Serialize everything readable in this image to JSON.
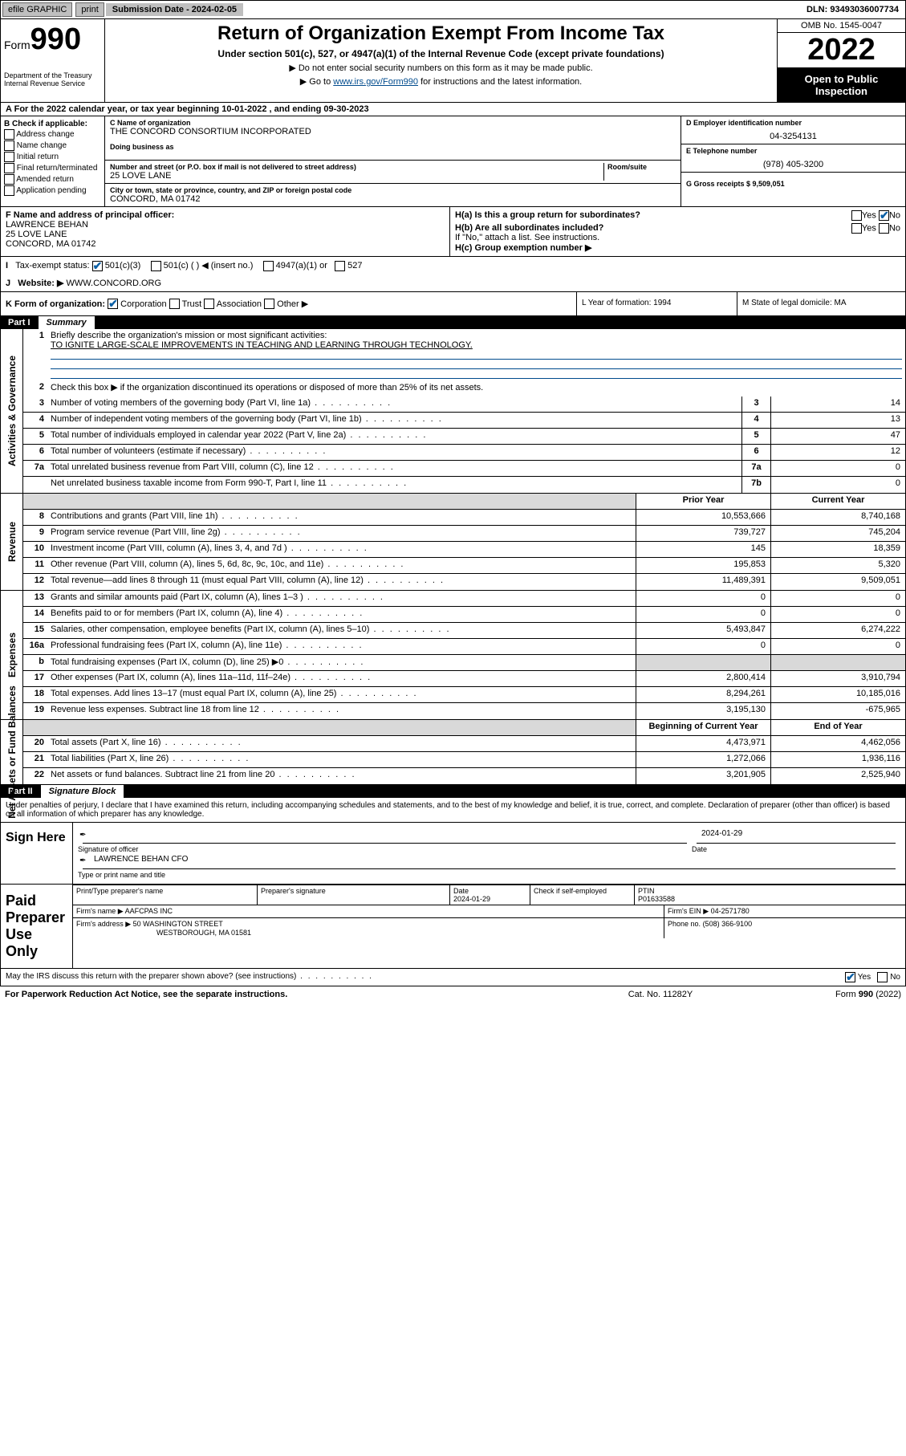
{
  "topbar": {
    "efile_label": "efile GRAPHIC",
    "print_label": "print",
    "submission_label": "Submission Date - 2024-02-05",
    "dln_label": "DLN: 93493036007734"
  },
  "header": {
    "form_prefix": "Form",
    "form_number": "990",
    "dept": "Department of the Treasury",
    "irs": "Internal Revenue Service",
    "title": "Return of Organization Exempt From Income Tax",
    "subtitle": "Under section 501(c), 527, or 4947(a)(1) of the Internal Revenue Code (except private foundations)",
    "instr1": "Do not enter social security numbers on this form as it may be made public.",
    "instr2_pre": "Go to ",
    "instr2_link": "www.irs.gov/Form990",
    "instr2_post": " for instructions and the latest information.",
    "omb": "OMB No. 1545-0047",
    "year": "2022",
    "open_public": "Open to Public Inspection"
  },
  "section_a": {
    "line_a": "For the 2022 calendar year, or tax year beginning 10-01-2022   , and ending 09-30-2023",
    "b_label": "B Check if applicable:",
    "b_opts": [
      "Address change",
      "Name change",
      "Initial return",
      "Final return/terminated",
      "Amended return",
      "Application pending"
    ],
    "c_name_lbl": "C Name of organization",
    "c_name": "THE CONCORD CONSORTIUM INCORPORATED",
    "dba_lbl": "Doing business as",
    "street_lbl": "Number and street (or P.O. box if mail is not delivered to street address)",
    "room_lbl": "Room/suite",
    "street": "25 LOVE LANE",
    "city_lbl": "City or town, state or province, country, and ZIP or foreign postal code",
    "city": "CONCORD, MA  01742",
    "d_lbl": "D Employer identification number",
    "d_val": "04-3254131",
    "e_lbl": "E Telephone number",
    "e_val": "(978) 405-3200",
    "g_lbl": "G Gross receipts $ 9,509,051",
    "f_lbl": "F Name and address of principal officer:",
    "f_name": "LAWRENCE BEHAN",
    "f_addr1": "25 LOVE LANE",
    "f_addr2": "CONCORD, MA  01742",
    "ha_lbl": "H(a)  Is this a group return for subordinates?",
    "ha_yes": "Yes",
    "ha_no": "No",
    "hb_lbl": "H(b)  Are all subordinates included?",
    "hb_yes": "Yes",
    "hb_no": "No",
    "hb_note": "If \"No,\" attach a list. See instructions.",
    "hc_lbl": "H(c)  Group exemption number ▶",
    "i_lbl": "Tax-exempt status:",
    "i_501c3": "501(c)(3)",
    "i_501c": "501(c) (    ) ◀ (insert no.)",
    "i_4947": "4947(a)(1) or",
    "i_527": "527",
    "j_lbl": "Website: ▶",
    "j_val": "WWW.CONCORD.ORG",
    "k_lbl": "K Form of organization:",
    "k_corp": "Corporation",
    "k_trust": "Trust",
    "k_assoc": "Association",
    "k_other": "Other ▶",
    "l_lbl": "L Year of formation: 1994",
    "m_lbl": "M State of legal domicile: MA"
  },
  "part1": {
    "tag": "Part I",
    "title": "Summary",
    "q1_lbl": "Briefly describe the organization's mission or most significant activities:",
    "q1_val": "TO IGNITE LARGE-SCALE IMPROVEMENTS IN TEACHING AND LEARNING THROUGH TECHNOLOGY.",
    "q2_lbl": "Check this box ▶        if the organization discontinued its operations or disposed of more than 25% of its net assets.",
    "rows_ag": [
      {
        "n": "3",
        "d": "Number of voting members of the governing body (Part VI, line 1a)",
        "c": "3",
        "v": "14"
      },
      {
        "n": "4",
        "d": "Number of independent voting members of the governing body (Part VI, line 1b)",
        "c": "4",
        "v": "13"
      },
      {
        "n": "5",
        "d": "Total number of individuals employed in calendar year 2022 (Part V, line 2a)",
        "c": "5",
        "v": "47"
      },
      {
        "n": "6",
        "d": "Total number of volunteers (estimate if necessary)",
        "c": "6",
        "v": "12"
      },
      {
        "n": "7a",
        "d": "Total unrelated business revenue from Part VIII, column (C), line 12",
        "c": "7a",
        "v": "0"
      },
      {
        "n": "",
        "d": "Net unrelated business taxable income from Form 990-T, Part I, line 11",
        "c": "7b",
        "v": "0"
      }
    ],
    "col_prior": "Prior Year",
    "col_current": "Current Year",
    "rows_rev": [
      {
        "n": "8",
        "d": "Contributions and grants (Part VIII, line 1h)",
        "p": "10,553,666",
        "c": "8,740,168"
      },
      {
        "n": "9",
        "d": "Program service revenue (Part VIII, line 2g)",
        "p": "739,727",
        "c": "745,204"
      },
      {
        "n": "10",
        "d": "Investment income (Part VIII, column (A), lines 3, 4, and 7d )",
        "p": "145",
        "c": "18,359"
      },
      {
        "n": "11",
        "d": "Other revenue (Part VIII, column (A), lines 5, 6d, 8c, 9c, 10c, and 11e)",
        "p": "195,853",
        "c": "5,320"
      },
      {
        "n": "12",
        "d": "Total revenue—add lines 8 through 11 (must equal Part VIII, column (A), line 12)",
        "p": "11,489,391",
        "c": "9,509,051"
      }
    ],
    "rows_exp": [
      {
        "n": "13",
        "d": "Grants and similar amounts paid (Part IX, column (A), lines 1–3 )",
        "p": "0",
        "c": "0"
      },
      {
        "n": "14",
        "d": "Benefits paid to or for members (Part IX, column (A), line 4)",
        "p": "0",
        "c": "0"
      },
      {
        "n": "15",
        "d": "Salaries, other compensation, employee benefits (Part IX, column (A), lines 5–10)",
        "p": "5,493,847",
        "c": "6,274,222"
      },
      {
        "n": "16a",
        "d": "Professional fundraising fees (Part IX, column (A), line 11e)",
        "p": "0",
        "c": "0"
      },
      {
        "n": "b",
        "d": "Total fundraising expenses (Part IX, column (D), line 25) ▶0",
        "p": "",
        "c": "",
        "grey": true
      },
      {
        "n": "17",
        "d": "Other expenses (Part IX, column (A), lines 11a–11d, 11f–24e)",
        "p": "2,800,414",
        "c": "3,910,794"
      },
      {
        "n": "18",
        "d": "Total expenses. Add lines 13–17 (must equal Part IX, column (A), line 25)",
        "p": "8,294,261",
        "c": "10,185,016"
      },
      {
        "n": "19",
        "d": "Revenue less expenses. Subtract line 18 from line 12",
        "p": "3,195,130",
        "c": "-675,965"
      }
    ],
    "col_beg": "Beginning of Current Year",
    "col_end": "End of Year",
    "rows_na": [
      {
        "n": "20",
        "d": "Total assets (Part X, line 16)",
        "p": "4,473,971",
        "c": "4,462,056"
      },
      {
        "n": "21",
        "d": "Total liabilities (Part X, line 26)",
        "p": "1,272,066",
        "c": "1,936,116"
      },
      {
        "n": "22",
        "d": "Net assets or fund balances. Subtract line 21 from line 20",
        "p": "3,201,905",
        "c": "2,525,940"
      }
    ],
    "vlabels": {
      "ag": "Activities & Governance",
      "rev": "Revenue",
      "exp": "Expenses",
      "na": "Net Assets or Fund Balances"
    }
  },
  "part2": {
    "tag": "Part II",
    "title": "Signature Block",
    "intro": "Under penalties of perjury, I declare that I have examined this return, including accompanying schedules and statements, and to the best of my knowledge and belief, it is true, correct, and complete. Declaration of preparer (other than officer) is based on all information of which preparer has any knowledge.",
    "sign_here": "Sign Here",
    "sig_officer": "Signature of officer",
    "sig_date_lbl": "Date",
    "sig_date": "2024-01-29",
    "officer_name": "LAWRENCE BEHAN CFO",
    "officer_title_lbl": "Type or print name and title",
    "paid_prep": "Paid Preparer Use Only",
    "prep_name_lbl": "Print/Type preparer's name",
    "prep_sig_lbl": "Preparer's signature",
    "prep_date_lbl": "Date",
    "prep_date": "2024-01-29",
    "prep_check_lbl": "Check         if self-employed",
    "ptin_lbl": "PTIN",
    "ptin": "P01633588",
    "firm_name_lbl": "Firm's name    ▶",
    "firm_name": "AAFCPAS INC",
    "firm_ein_lbl": "Firm's EIN ▶",
    "firm_ein": "04-2571780",
    "firm_addr_lbl": "Firm's address ▶",
    "firm_addr1": "50 WASHINGTON STREET",
    "firm_addr2": "WESTBOROUGH, MA  01581",
    "firm_phone_lbl": "Phone no.",
    "firm_phone": "(508) 366-9100",
    "discuss": "May the IRS discuss this return with the preparer shown above? (see instructions)",
    "yes": "Yes",
    "no": "No"
  },
  "footer": {
    "left": "For Paperwork Reduction Act Notice, see the separate instructions.",
    "center": "Cat. No. 11282Y",
    "right": "Form 990 (2022)"
  }
}
